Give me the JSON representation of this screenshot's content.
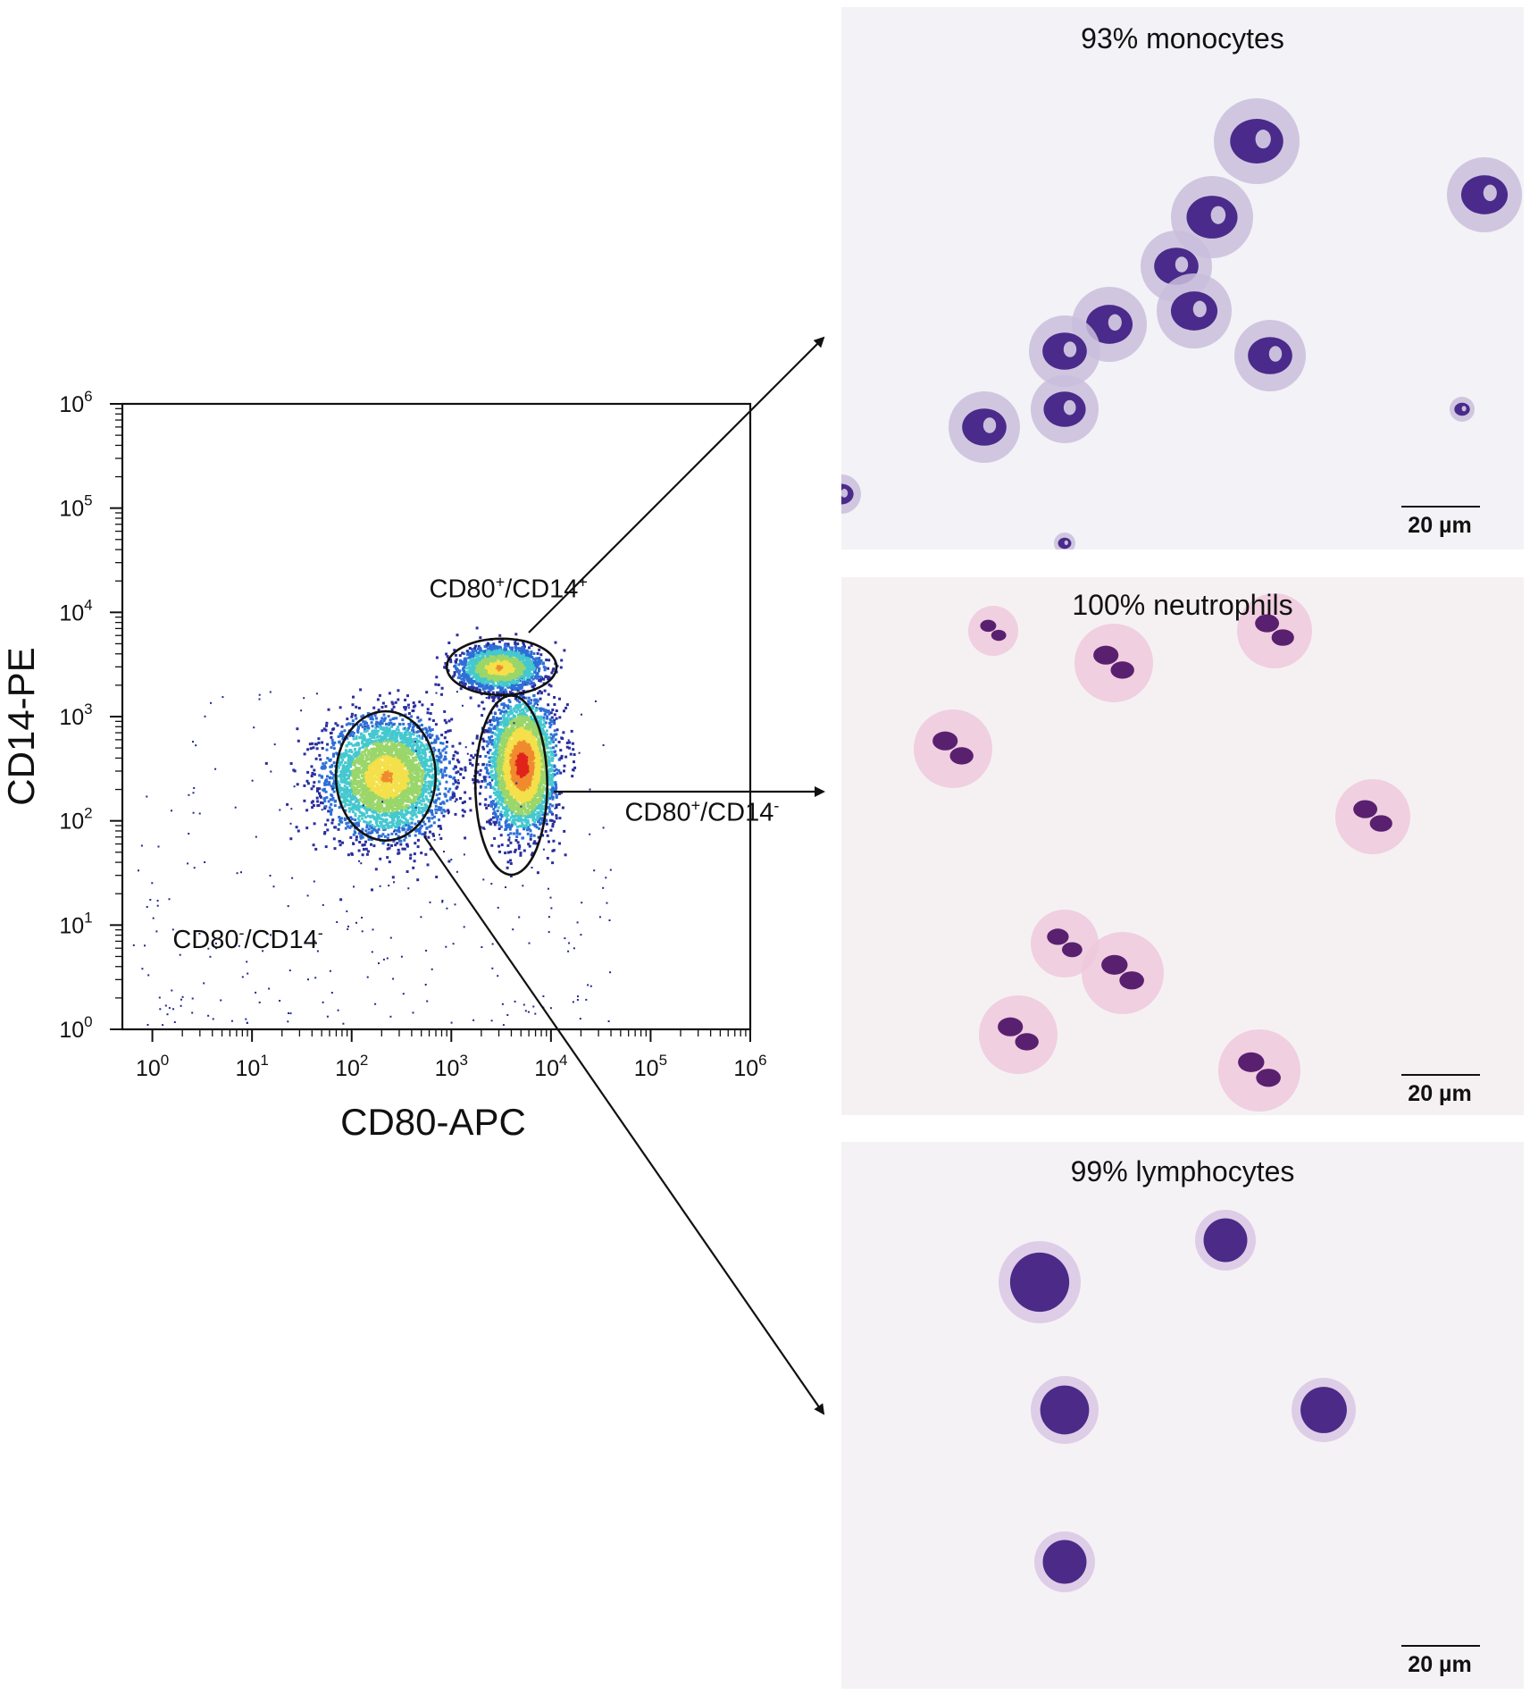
{
  "chart_data": {
    "type": "scatter",
    "subtype": "flow-cytometry density plot",
    "xlabel": "CD80-APC",
    "ylabel": "CD14-PE",
    "x_scale": "log",
    "y_scale": "log",
    "xlim": [
      0.5,
      1000000
    ],
    "ylim": [
      1,
      1000000
    ],
    "x_ticks": [
      {
        "base": "10",
        "exp": "0",
        "value": 1
      },
      {
        "base": "10",
        "exp": "1",
        "value": 10
      },
      {
        "base": "10",
        "exp": "2",
        "value": 100
      },
      {
        "base": "10",
        "exp": "3",
        "value": 1000
      },
      {
        "base": "10",
        "exp": "4",
        "value": 10000
      },
      {
        "base": "10",
        "exp": "5",
        "value": 100000
      },
      {
        "base": "10",
        "exp": "6",
        "value": 1000000
      }
    ],
    "y_ticks": [
      {
        "base": "10",
        "exp": "0",
        "value": 1
      },
      {
        "base": "10",
        "exp": "1",
        "value": 10
      },
      {
        "base": "10",
        "exp": "2",
        "value": 100
      },
      {
        "base": "10",
        "exp": "3",
        "value": 1000
      },
      {
        "base": "10",
        "exp": "4",
        "value": 10000
      },
      {
        "base": "10",
        "exp": "5",
        "value": 100000
      },
      {
        "base": "10",
        "exp": "6",
        "value": 1000000
      }
    ],
    "populations": [
      {
        "name": "CD80-/CD14-",
        "center": [
          220,
          270
        ],
        "spread": [
          0.3,
          0.28
        ],
        "density": 1.0,
        "gate": {
          "center": [
            220,
            270
          ],
          "half_width_decades": 0.5,
          "half_height_decades": 0.62
        }
      },
      {
        "name": "CD80+/CD14-",
        "center": [
          5000,
          350
        ],
        "spread": [
          0.16,
          0.3
        ],
        "density": 1.0,
        "gate": {
          "center": [
            4000,
            220
          ],
          "half_width_decades": 0.36,
          "half_height_decades": 0.86
        }
      },
      {
        "name": "CD80+/CD14+",
        "center": [
          3000,
          3000
        ],
        "spread": [
          0.2,
          0.1
        ],
        "density": 0.55,
        "gate": {
          "center": [
            3200,
            3000
          ],
          "half_width_decades": 0.55,
          "half_height_decades": 0.27
        }
      }
    ],
    "annotations": [
      {
        "text": "CD80",
        "sup": "+",
        "text2": "/CD14",
        "sup2": "+",
        "x": 600,
        "y": 14000
      },
      {
        "text": "CD80",
        "sup": "+",
        "text2": "/CD14",
        "sup2": "-",
        "x": 55000,
        "y": 100
      },
      {
        "text": "CD80",
        "sup": "-",
        "text2": "/CD14",
        "sup2": "-",
        "x": 1.6,
        "y": 6
      }
    ],
    "colormap": [
      "#2a2f9e",
      "#2f6fd6",
      "#45c8cf",
      "#9ad66a",
      "#f4e04a",
      "#f08a2e",
      "#e0241b"
    ]
  },
  "panels": [
    {
      "title": "93% monocytes",
      "scale_label": "20 µm",
      "cell_type": "monocyte",
      "bg": "#f3f2f6",
      "nucleus": "#4a2a8a",
      "cytoplasm": "#c9bedc"
    },
    {
      "title": "100% neutrophils",
      "scale_label": "20 µm",
      "cell_type": "neutrophil",
      "bg": "#f5f1f3",
      "nucleus": "#5a2070",
      "cytoplasm": "#efc9dc"
    },
    {
      "title": "99% lymphocytes",
      "scale_label": "20 µm",
      "cell_type": "lymphocyte",
      "bg": "#f5f2f5",
      "nucleus": "#4b2a88",
      "cytoplasm": "#d9c7e4"
    }
  ]
}
